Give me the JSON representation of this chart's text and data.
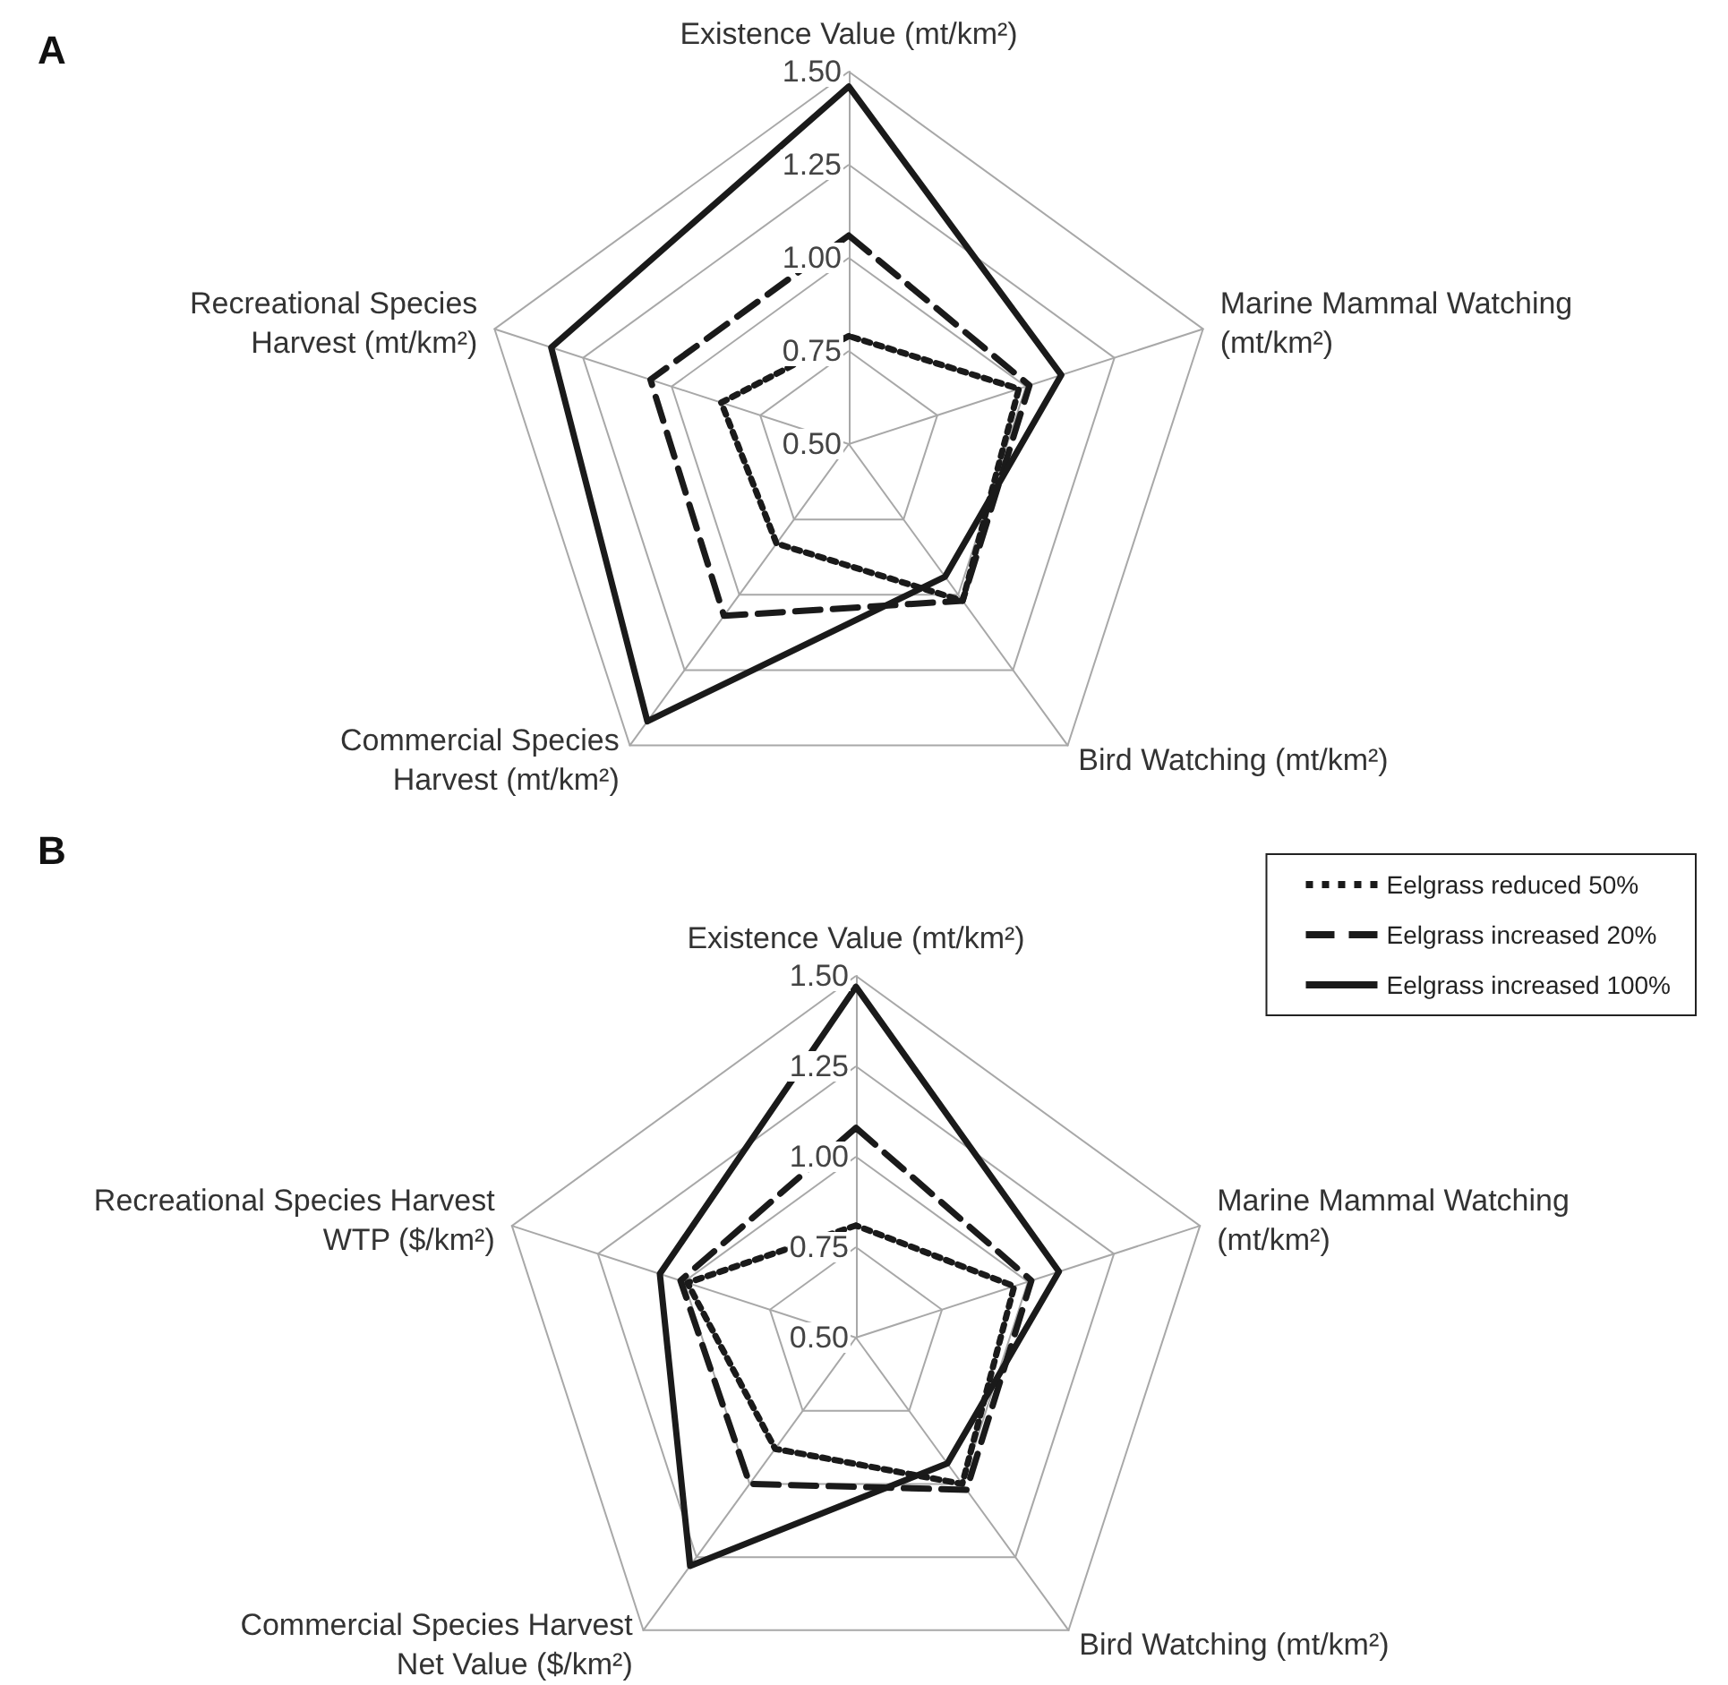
{
  "chart_data": [
    {
      "type": "radar",
      "title": "A",
      "categories": [
        "Existence Value (mt/km²)",
        "Marine Mammal Watching\n(mt/km²)",
        "Bird Watching (mt/km²)",
        "Commercial Species\nHarvest (mt/km²)",
        "Recreational Species\nHarvest (mt/km²)"
      ],
      "ylim": [
        0.5,
        1.5
      ],
      "yticks": [
        {
          "value": 0.5,
          "label": "0.50"
        },
        {
          "value": 0.75,
          "label": "0.75"
        },
        {
          "value": 1.0,
          "label": "1.00"
        },
        {
          "value": 1.25,
          "label": "1.25"
        },
        {
          "value": 1.5,
          "label": "1.50"
        }
      ],
      "legend": false,
      "series": [
        {
          "color": "#1a1a1a",
          "line_style": "dotted",
          "values": [
            0.79,
            0.98,
            1.02,
            0.83,
            0.86
          ]
        },
        {
          "color": "#1a1a1a",
          "line_style": "dashed",
          "values": [
            1.06,
            1.01,
            1.02,
            1.07,
            1.06
          ]
        },
        {
          "color": "#1a1a1a",
          "line_style": "solid",
          "values": [
            1.46,
            1.1,
            0.94,
            1.42,
            1.34
          ]
        }
      ]
    },
    {
      "type": "radar",
      "title": "B",
      "categories": [
        "Existence Value (mt/km²)",
        "Marine Mammal Watching\n(mt/km²)",
        "Bird Watching (mt/km²)",
        "Commercial Species Harvest\nNet Value ($/km²)",
        "Recreational Species Harvest\nWTP ($/km²)"
      ],
      "ylim": [
        0.5,
        1.5
      ],
      "yticks": [
        {
          "value": 0.5,
          "label": "0.50"
        },
        {
          "value": 0.75,
          "label": "0.75"
        },
        {
          "value": 1.0,
          "label": "1.00"
        },
        {
          "value": 1.25,
          "label": "1.25"
        },
        {
          "value": 1.5,
          "label": "1.50"
        }
      ],
      "legend": "top right",
      "series": [
        {
          "name": "Eelgrass reduced 50%",
          "color": "#1a1a1a",
          "line_style": "dotted",
          "values": [
            0.81,
            0.96,
            1.0,
            0.88,
            0.99
          ]
        },
        {
          "name": "Eelgrass increased 20%",
          "color": "#1a1a1a",
          "line_style": "dashed",
          "values": [
            1.08,
            1.01,
            1.02,
            1.0,
            1.01
          ]
        },
        {
          "name": "Eelgrass increased 100%",
          "color": "#1a1a1a",
          "line_style": "solid",
          "values": [
            1.47,
            1.09,
            0.93,
            1.28,
            1.07
          ]
        }
      ]
    }
  ]
}
